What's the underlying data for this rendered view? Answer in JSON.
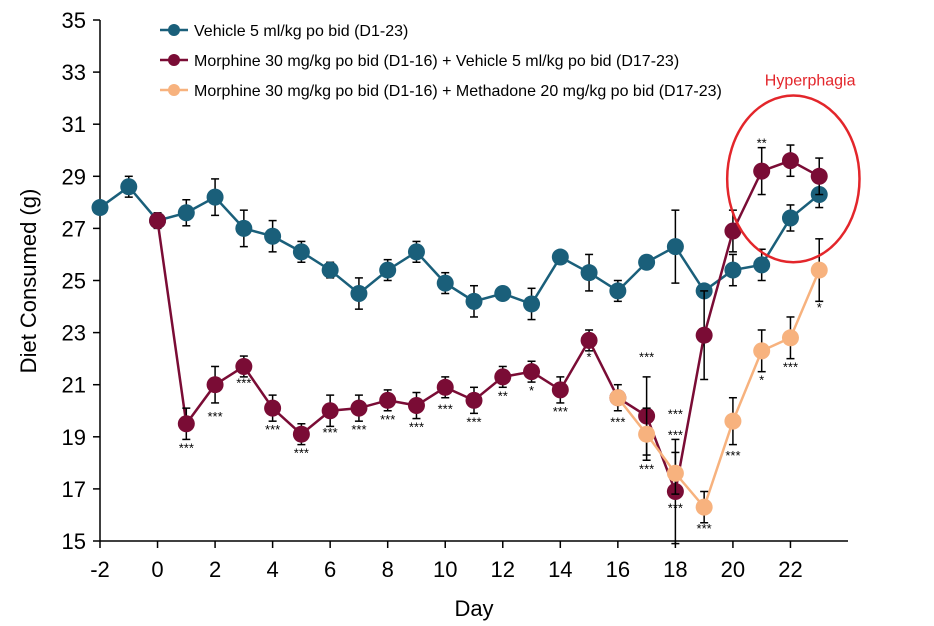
{
  "chart_data": {
    "type": "line",
    "xlabel": "Day",
    "ylabel": "Diet Consumed (g)",
    "xlim": [
      -2,
      24
    ],
    "ylim": [
      15,
      35
    ],
    "xticks": [
      -2,
      0,
      2,
      4,
      6,
      8,
      10,
      12,
      14,
      16,
      18,
      20,
      22
    ],
    "yticks": [
      15,
      17,
      19,
      21,
      23,
      25,
      27,
      29,
      31,
      33,
      35
    ],
    "grid": false,
    "legend_position": "top-left",
    "series": [
      {
        "name": "Vehicle 5 ml/kg po bid (D1-23)",
        "color": "#1a5f7a",
        "points": [
          {
            "x": -2,
            "y": 27.8,
            "err": 0
          },
          {
            "x": -1,
            "y": 28.6,
            "err": 0.4
          },
          {
            "x": 0,
            "y": 27.3,
            "err": 0.3
          },
          {
            "x": 1,
            "y": 27.6,
            "err": 0.5
          },
          {
            "x": 2,
            "y": 28.2,
            "err": 0.7
          },
          {
            "x": 3,
            "y": 27.0,
            "err": 0.7
          },
          {
            "x": 4,
            "y": 26.7,
            "err": 0.6
          },
          {
            "x": 5,
            "y": 26.1,
            "err": 0.4
          },
          {
            "x": 6,
            "y": 25.4,
            "err": 0.3
          },
          {
            "x": 7,
            "y": 24.5,
            "err": 0.6
          },
          {
            "x": 8,
            "y": 25.4,
            "err": 0.4
          },
          {
            "x": 9,
            "y": 26.1,
            "err": 0.4
          },
          {
            "x": 10,
            "y": 24.9,
            "err": 0.4
          },
          {
            "x": 11,
            "y": 24.2,
            "err": 0.6
          },
          {
            "x": 12,
            "y": 24.5,
            "err": 0.2
          },
          {
            "x": 13,
            "y": 24.1,
            "err": 0.6
          },
          {
            "x": 14,
            "y": 25.9,
            "err": 0
          },
          {
            "x": 15,
            "y": 25.3,
            "err": 0.7
          },
          {
            "x": 16,
            "y": 24.6,
            "err": 0.4
          },
          {
            "x": 17,
            "y": 25.7,
            "err": 0
          },
          {
            "x": 18,
            "y": 26.3,
            "err": 1.4
          },
          {
            "x": 19,
            "y": 24.6,
            "err": 0
          },
          {
            "x": 20,
            "y": 25.4,
            "err": 0.6
          },
          {
            "x": 21,
            "y": 25.6,
            "err": 0.6
          },
          {
            "x": 22,
            "y": 27.4,
            "err": 0.5
          },
          {
            "x": 23,
            "y": 28.3,
            "err": 0.5
          }
        ]
      },
      {
        "name": "Morphine 30 mg/kg po bid (D1-16) + Vehicle 5 ml/kg po bid (D17-23)",
        "color": "#7a0c35",
        "points": [
          {
            "x": 0,
            "y": 27.3,
            "err": 0
          },
          {
            "x": 1,
            "y": 19.5,
            "err": 0.6
          },
          {
            "x": 2,
            "y": 21.0,
            "err": 0.7
          },
          {
            "x": 3,
            "y": 21.7,
            "err": 0.4
          },
          {
            "x": 4,
            "y": 20.1,
            "err": 0.5
          },
          {
            "x": 5,
            "y": 19.1,
            "err": 0.4
          },
          {
            "x": 6,
            "y": 20.0,
            "err": 0.6
          },
          {
            "x": 7,
            "y": 20.1,
            "err": 0.5
          },
          {
            "x": 8,
            "y": 20.4,
            "err": 0.4
          },
          {
            "x": 9,
            "y": 20.2,
            "err": 0.5
          },
          {
            "x": 10,
            "y": 20.9,
            "err": 0.4
          },
          {
            "x": 11,
            "y": 20.4,
            "err": 0.5
          },
          {
            "x": 12,
            "y": 21.3,
            "err": 0.4
          },
          {
            "x": 13,
            "y": 21.5,
            "err": 0.4
          },
          {
            "x": 14,
            "y": 20.8,
            "err": 0.5
          },
          {
            "x": 15,
            "y": 22.7,
            "err": 0.4
          },
          {
            "x": 16,
            "y": 20.5,
            "err": 0
          },
          {
            "x": 17,
            "y": 19.8,
            "err": 1.5
          },
          {
            "x": 18,
            "y": 16.9,
            "err": 2.0
          },
          {
            "x": 19,
            "y": 22.9,
            "err": 1.7
          },
          {
            "x": 20,
            "y": 26.9,
            "err": 0.8
          },
          {
            "x": 21,
            "y": 29.2,
            "err": 0.9
          },
          {
            "x": 22,
            "y": 29.6,
            "err": 0.6
          },
          {
            "x": 23,
            "y": 29.0,
            "err": 0.7
          }
        ]
      },
      {
        "name": "Morphine 30 mg/kg po bid (D1-16) + Methadone 20 mg/kg po bid (D17-23)",
        "color": "#f7b27e",
        "points": [
          {
            "x": 16,
            "y": 20.5,
            "err": 0.5
          },
          {
            "x": 17,
            "y": 19.1,
            "err": 1.0
          },
          {
            "x": 18,
            "y": 17.6,
            "err": 0.8
          },
          {
            "x": 19,
            "y": 16.3,
            "err": 0.6
          },
          {
            "x": 20,
            "y": 19.6,
            "err": 0.9
          },
          {
            "x": 21,
            "y": 22.3,
            "err": 0.8
          },
          {
            "x": 22,
            "y": 22.8,
            "err": 0.8
          },
          {
            "x": 23,
            "y": 25.4,
            "err": 1.2
          }
        ]
      }
    ],
    "significance_labels": [
      {
        "x": 1,
        "y": 18.4,
        "text": "***"
      },
      {
        "x": 2,
        "y": 19.6,
        "text": "***"
      },
      {
        "x": 3,
        "y": 20.9,
        "text": "***"
      },
      {
        "x": 4,
        "y": 19.1,
        "text": "***"
      },
      {
        "x": 5,
        "y": 18.2,
        "text": "***"
      },
      {
        "x": 6,
        "y": 19.0,
        "text": "***"
      },
      {
        "x": 7,
        "y": 19.1,
        "text": "***"
      },
      {
        "x": 8,
        "y": 19.5,
        "text": "***"
      },
      {
        "x": 9,
        "y": 19.2,
        "text": "***"
      },
      {
        "x": 10,
        "y": 19.9,
        "text": "***"
      },
      {
        "x": 11,
        "y": 19.4,
        "text": "***"
      },
      {
        "x": 12,
        "y": 20.4,
        "text": "**"
      },
      {
        "x": 13,
        "y": 20.6,
        "text": "*"
      },
      {
        "x": 14,
        "y": 19.8,
        "text": "***"
      },
      {
        "x": 15,
        "y": 21.9,
        "text": "*"
      },
      {
        "x": 16,
        "y": 19.4,
        "text": "***"
      },
      {
        "x": 17,
        "y": 21.9,
        "text": "***"
      },
      {
        "x": 17,
        "y": 17.6,
        "text": "***"
      },
      {
        "x": 18,
        "y": 19.7,
        "text": "***"
      },
      {
        "x": 18,
        "y": 18.9,
        "text": "***"
      },
      {
        "x": 18,
        "y": 16.1,
        "text": "***"
      },
      {
        "x": 19,
        "y": 15.3,
        "text": "***"
      },
      {
        "x": 20,
        "y": 18.1,
        "text": "***"
      },
      {
        "x": 21,
        "y": 21.0,
        "text": "*"
      },
      {
        "x": 21,
        "y": 30.1,
        "text": "**"
      },
      {
        "x": 22,
        "y": 21.5,
        "text": "***"
      },
      {
        "x": 23,
        "y": 23.8,
        "text": "*"
      }
    ],
    "annotation": {
      "text": "Hyperphagia",
      "color": "#e3262b",
      "circle_center": {
        "x": 22.1,
        "y": 28.9
      },
      "circle_rx": 2.3,
      "circle_ry": 3.2
    }
  }
}
